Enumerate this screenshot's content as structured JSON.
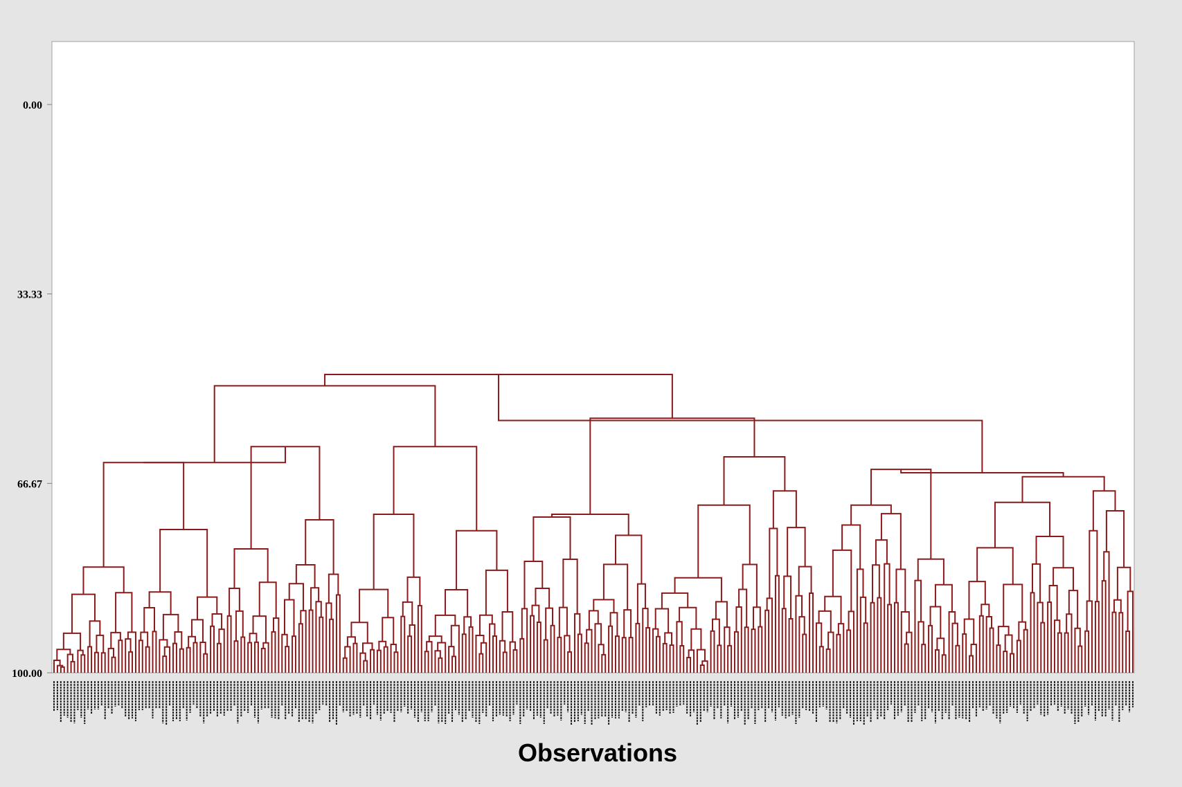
{
  "chart_data": {
    "type": "dendrogram",
    "title": "",
    "xlabel": "Observations",
    "ylabel": "",
    "y_axis": {
      "orientation": "inverted",
      "range": [
        0,
        100
      ],
      "ticks": [
        "0.00",
        "33.33",
        "66.67",
        "100.00"
      ]
    },
    "leaf_count": 318,
    "link_color": "#8b1a1a",
    "background_color": "#e5e5e5",
    "plot_background_color": "#ffffff",
    "major_merges": [
      {
        "id": "root",
        "similarity": 55.6,
        "children": [
          "A",
          "B"
        ]
      },
      {
        "id": "A",
        "similarity": 47.5,
        "children": [
          "A1",
          "A2"
        ]
      },
      {
        "id": "B",
        "similarity": 64.8,
        "children": [
          "B1",
          "B2"
        ]
      },
      {
        "id": "A1",
        "similarity": 49.5,
        "children": [
          "A1a",
          "A1b"
        ]
      },
      {
        "id": "A2",
        "similarity": 55.2,
        "children": [
          "A2a",
          "A2b"
        ]
      },
      {
        "id": "A1a",
        "similarity": 63.0,
        "children": [
          "A1a-i",
          "A1a-ii"
        ]
      },
      {
        "id": "A1b",
        "similarity": 60.2,
        "children": [
          "A1b-i",
          "A1b-ii"
        ]
      },
      {
        "id": "A2a",
        "similarity": 72.1,
        "children": [
          "A2a-i",
          "A2a-ii"
        ]
      }
    ],
    "leaf_labels_legible": false
  }
}
